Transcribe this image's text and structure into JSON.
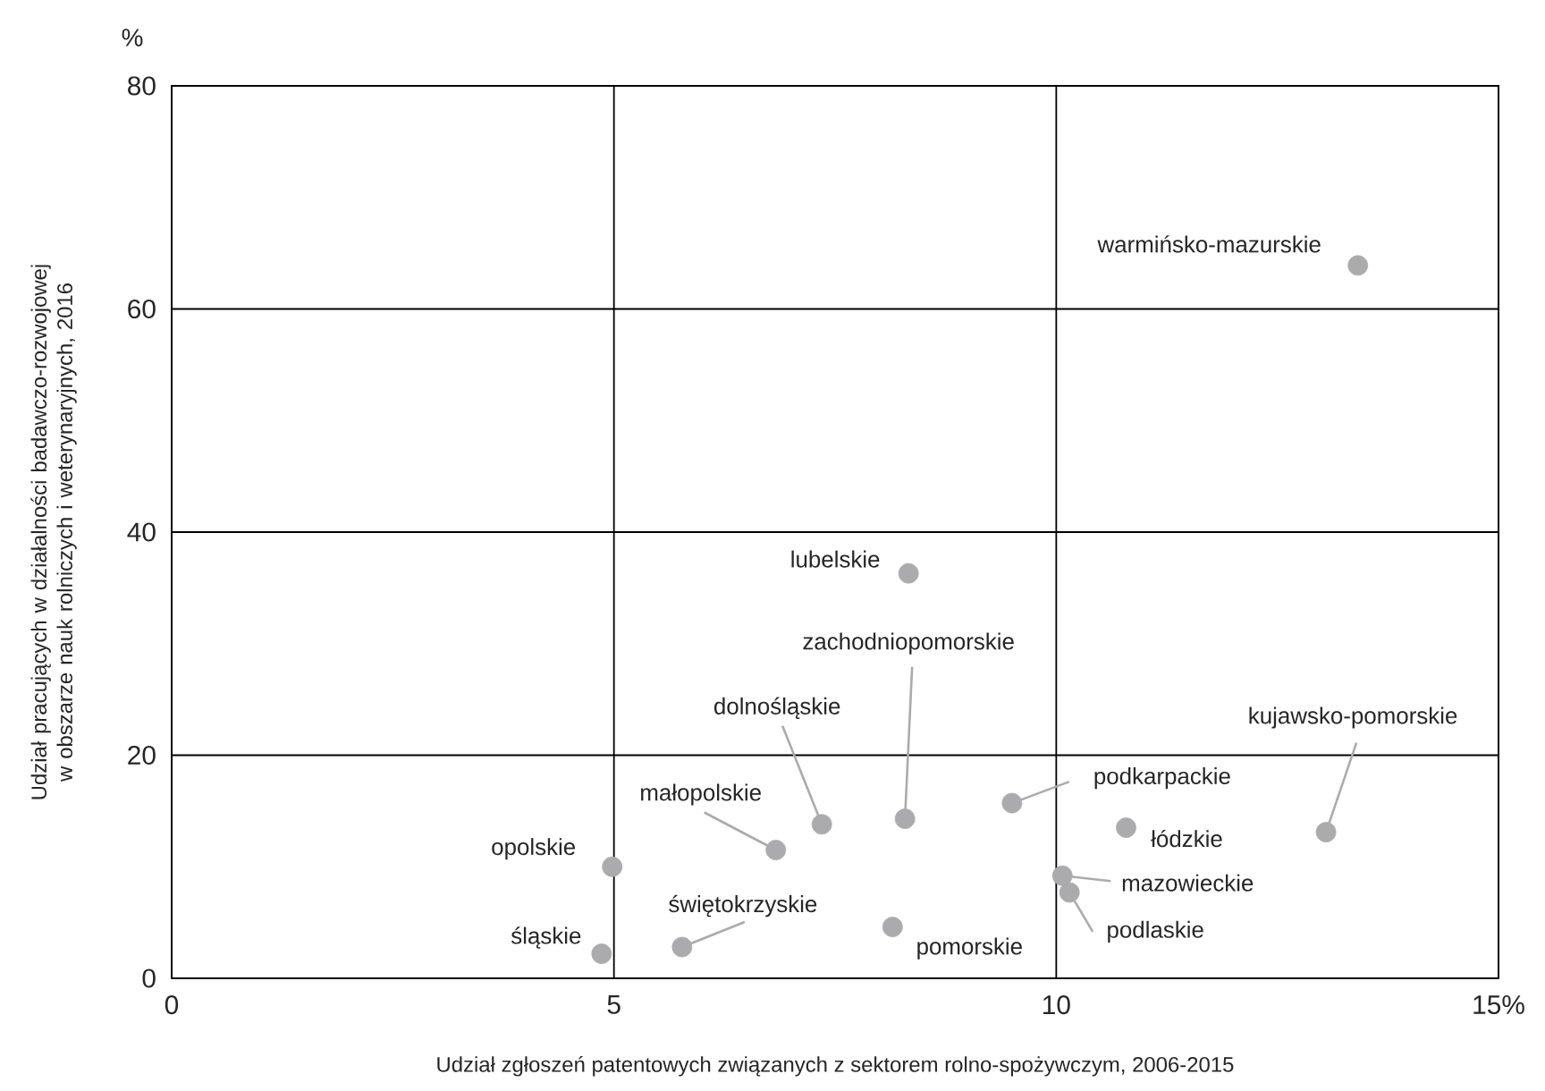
{
  "chart_data": {
    "type": "scatter",
    "xlabel": "Udział zgłoszeń patentowych związanych z sektorem rolno-spożywczym, 2006-2015",
    "ylabel": "Udział pracujących w działalności badawczo-rozwojowej w obszarze nauk rolniczych i weterynaryjnych, 2016",
    "x": [
      13.41,
      8.33,
      8.29,
      7.35,
      6.83,
      4.98,
      4.86,
      5.77,
      8.15,
      9.5,
      10.79,
      13.05,
      10.07,
      10.15
    ],
    "values": [
      63.9,
      36.3,
      14.3,
      13.8,
      11.5,
      10.0,
      2.2,
      2.8,
      4.6,
      15.7,
      13.5,
      13.1,
      9.2,
      7.7
    ],
    "color": "#ababad",
    "grid": true,
    "xlim": [
      0,
      15
    ],
    "ylim": [
      0,
      80
    ],
    "xticks": [
      0,
      5,
      10,
      {
        "value": 15,
        "label": "15%"
      }
    ],
    "yticks": [
      0,
      20,
      40,
      60,
      80
    ],
    "annotations": [
      "%",
      {
        "text": "warmińsko-mazurskie",
        "x": 13.41,
        "y": 63.9
      },
      {
        "text": "lubelskie",
        "x": 8.33,
        "y": 36.3
      },
      {
        "text": "zachodniopomorskie",
        "x": 8.29,
        "y": 14.3
      },
      {
        "text": "dolnośląskie",
        "x": 7.35,
        "y": 13.8
      },
      {
        "text": "małopolskie",
        "x": 6.83,
        "y": 11.5
      },
      {
        "text": "opolskie",
        "x": 4.98,
        "y": 10.0
      },
      {
        "text": "śląskie",
        "x": 4.86,
        "y": 2.2
      },
      {
        "text": "świętokrzyskie",
        "x": 5.77,
        "y": 2.8
      },
      {
        "text": "pomorskie",
        "x": 8.15,
        "y": 4.6
      },
      {
        "text": "podkarpackie",
        "x": 9.5,
        "y": 15.7
      },
      {
        "text": "łódzkie",
        "x": 10.79,
        "y": 13.5
      },
      {
        "text": "kujawsko-pomorskie",
        "x": 13.05,
        "y": 13.1
      },
      {
        "text": "mazowieckie",
        "x": 10.07,
        "y": 9.2
      },
      {
        "text": "podlaskie",
        "x": 10.15,
        "y": 7.7
      }
    ]
  }
}
